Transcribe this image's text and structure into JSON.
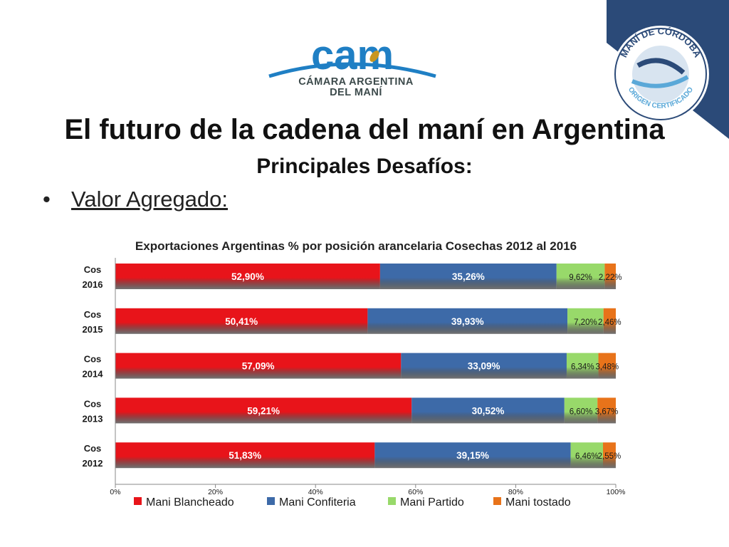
{
  "logo": {
    "brand": "cam",
    "line1": "CÁMARA ARGENTINA",
    "line2": "DEL MANÍ"
  },
  "seal": {
    "top_text": "MANÍ DE CÓRDOBA",
    "bottom_text": "ORIGEN CERTIFICADO"
  },
  "slide": {
    "title": "El futuro de la cadena del maní en Argentina",
    "subtitle": "Principales Desafíos:",
    "bullet_symbol": "•",
    "bullet_text": "Valor Agregado:"
  },
  "colors": {
    "corner": "#2b4a78",
    "logo_blue": "#1f7fc4",
    "logo_leaf": "#c8961e",
    "Mani Blancheado": "#e8141a",
    "Mani Confiteria": "#3d6aa8",
    "Mani Partido": "#98d96a",
    "Mani tostado": "#e8731a"
  },
  "chart_data": {
    "type": "bar",
    "orientation": "horizontal",
    "stacked": "percent",
    "title": "Exportaciones Argentinas % por posición arancelaria  Cosechas 2012 al 2016",
    "categories": [
      "Cos 2016",
      "Cos 2015",
      "Cos 2014",
      "Cos 2013",
      "Cos 2012"
    ],
    "series": [
      {
        "name": "Mani Blancheado",
        "values": [
          52.9,
          50.41,
          57.09,
          59.21,
          51.83
        ],
        "labels": [
          "52,90%",
          "50,41%",
          "57,09%",
          "59,21%",
          "51,83%"
        ]
      },
      {
        "name": "Mani Confiteria",
        "values": [
          35.26,
          39.93,
          33.09,
          30.52,
          39.15
        ],
        "labels": [
          "35,26%",
          "39,93%",
          "33,09%",
          "30,52%",
          "39,15%"
        ]
      },
      {
        "name": "Mani Partido",
        "values": [
          9.62,
          7.2,
          6.34,
          6.6,
          6.46
        ],
        "labels": [
          "9,62%",
          "7,20%",
          "6,34%",
          "6,60%",
          "6,46%"
        ]
      },
      {
        "name": "Mani tostado",
        "values": [
          2.22,
          2.46,
          3.48,
          3.67,
          2.55
        ],
        "labels": [
          "2,22%",
          "2,46%",
          "3,48%",
          "3,67%",
          "2,55%"
        ]
      }
    ],
    "xticks": [
      "0%",
      "20%",
      "40%",
      "60%",
      "80%",
      "100%"
    ],
    "xlim": [
      0,
      100
    ],
    "grid": false,
    "legend": "bottom"
  }
}
